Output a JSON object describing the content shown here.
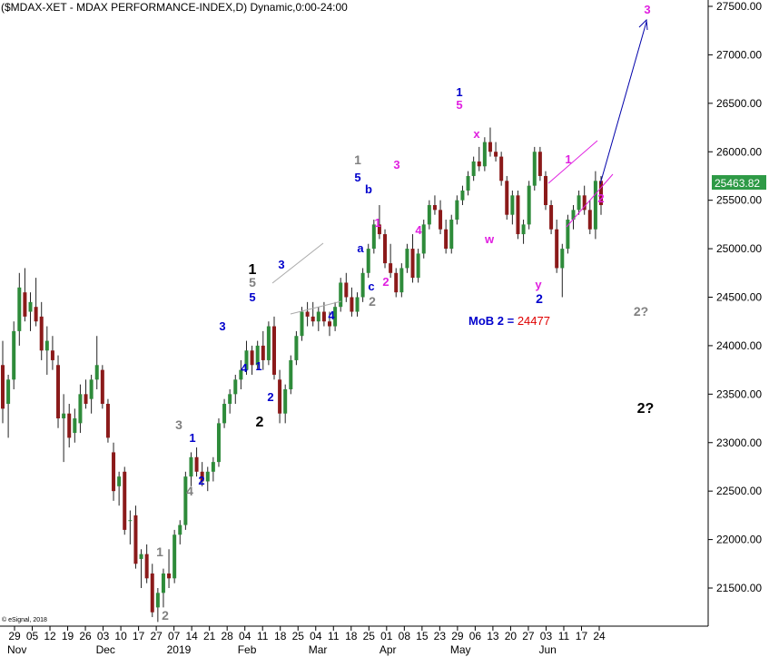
{
  "chart_data": {
    "type": "candlestick",
    "title": "($MDAX-XET - MDAX PERFORMANCE-INDEX,D) Dynamic,0:00-24:00",
    "last_price_label": "25463.82",
    "copyright": "© eSignal, 2018",
    "ylim": [
      21100,
      27700
    ],
    "y_ticks": [
      "21500.00",
      "22000.00",
      "22500.00",
      "23000.00",
      "23500.00",
      "24000.00",
      "24500.00",
      "25000.00",
      "25500.00",
      "26000.00",
      "26500.00",
      "27000.00",
      "27500.00"
    ],
    "x_day_labels": [
      "29",
      "05",
      "12",
      "19",
      "26",
      "03",
      "10",
      "17",
      "27",
      "07",
      "14",
      "21",
      "28",
      "04",
      "11",
      "18",
      "25",
      "04",
      "11",
      "18",
      "25",
      "01",
      "08",
      "15",
      "23",
      "29",
      "06",
      "13",
      "20",
      "27",
      "03",
      "11",
      "17",
      "24"
    ],
    "x_month_labels": [
      "Nov",
      "Dec",
      "2019",
      "Feb",
      "Mar",
      "Apr",
      "May",
      "Jun"
    ],
    "colors": {
      "up": "#2e8b3a",
      "down": "#8b1a1a",
      "blue": "#0000cc",
      "magenta": "#e020e0",
      "gray": "#808080",
      "black": "#000000",
      "red": "#e00000"
    },
    "candles": [
      [
        23800,
        24050,
        23200,
        23350
      ],
      [
        23400,
        23700,
        23050,
        23650
      ],
      [
        23650,
        24250,
        23550,
        24150
      ],
      [
        24150,
        24750,
        24000,
        24600
      ],
      [
        24550,
        24800,
        24250,
        24300
      ],
      [
        24350,
        24550,
        24150,
        24450
      ],
      [
        24400,
        24700,
        24200,
        24250
      ],
      [
        24300,
        24450,
        23850,
        23950
      ],
      [
        23950,
        24200,
        23700,
        24050
      ],
      [
        23950,
        24100,
        23750,
        23850
      ],
      [
        23800,
        23900,
        23150,
        23250
      ],
      [
        23250,
        23500,
        22800,
        23300
      ],
      [
        23300,
        23400,
        22950,
        23050
      ],
      [
        23100,
        23350,
        23000,
        23250
      ],
      [
        23200,
        23600,
        23100,
        23500
      ],
      [
        23500,
        23650,
        23350,
        23400
      ],
      [
        23450,
        23700,
        23300,
        23650
      ],
      [
        23650,
        24100,
        23550,
        23800
      ],
      [
        23750,
        23800,
        23350,
        23400
      ],
      [
        23400,
        23450,
        23000,
        23050
      ],
      [
        22900,
        23000,
        22400,
        22500
      ],
      [
        22550,
        22700,
        22350,
        22650
      ],
      [
        22700,
        22750,
        22050,
        22100
      ],
      [
        22200,
        22300,
        21950,
        22200
      ],
      [
        22250,
        22350,
        21700,
        21750
      ],
      [
        21800,
        21900,
        21500,
        21850
      ],
      [
        21850,
        21950,
        21550,
        21600
      ],
      [
        21650,
        21750,
        21200,
        21250
      ],
      [
        21300,
        21500,
        21150,
        21450
      ],
      [
        21450,
        21700,
        21300,
        21650
      ],
      [
        21650,
        21900,
        21500,
        21600
      ],
      [
        21600,
        22100,
        21550,
        22050
      ],
      [
        22050,
        22200,
        21950,
        22150
      ],
      [
        22150,
        22700,
        22100,
        22650
      ],
      [
        22650,
        22900,
        22550,
        22850
      ],
      [
        22850,
        22950,
        22650,
        22700
      ],
      [
        22700,
        22800,
        22550,
        22600
      ],
      [
        22600,
        22750,
        22500,
        22700
      ],
      [
        22700,
        22850,
        22600,
        22800
      ],
      [
        22800,
        23250,
        22750,
        23200
      ],
      [
        23200,
        23450,
        23150,
        23400
      ],
      [
        23400,
        23550,
        23300,
        23500
      ],
      [
        23500,
        23700,
        23400,
        23650
      ],
      [
        23650,
        23850,
        23550,
        23750
      ],
      [
        23750,
        24050,
        23700,
        23950
      ],
      [
        23950,
        24000,
        23700,
        23800
      ],
      [
        23800,
        24050,
        23750,
        24000
      ],
      [
        24000,
        24150,
        23750,
        23850
      ],
      [
        23850,
        24250,
        23800,
        24200
      ],
      [
        24200,
        24300,
        23650,
        23700
      ],
      [
        23650,
        23750,
        23200,
        23300
      ],
      [
        23300,
        23600,
        23200,
        23550
      ],
      [
        23550,
        23900,
        23500,
        23850
      ],
      [
        23850,
        24150,
        23800,
        24100
      ],
      [
        24100,
        24400,
        24050,
        24350
      ],
      [
        24350,
        24450,
        24200,
        24300
      ],
      [
        24300,
        24450,
        24200,
        24250
      ],
      [
        24250,
        24400,
        24150,
        24350
      ],
      [
        24350,
        24450,
        24200,
        24250
      ],
      [
        24250,
        24350,
        24100,
        24200
      ],
      [
        24200,
        24450,
        24150,
        24400
      ],
      [
        24400,
        24700,
        24350,
        24650
      ],
      [
        24650,
        24750,
        24450,
        24500
      ],
      [
        24500,
        24600,
        24300,
        24350
      ],
      [
        24350,
        24550,
        24300,
        24500
      ],
      [
        24500,
        24800,
        24450,
        24750
      ],
      [
        24750,
        25050,
        24700,
        25000
      ],
      [
        25000,
        25300,
        24950,
        25250
      ],
      [
        25250,
        25450,
        25100,
        25150
      ],
      [
        25150,
        25200,
        24800,
        24850
      ],
      [
        24850,
        25050,
        24700,
        24750
      ],
      [
        24750,
        24800,
        24500,
        24550
      ],
      [
        24550,
        24850,
        24500,
        24800
      ],
      [
        24800,
        25050,
        24750,
        25000
      ],
      [
        25000,
        25150,
        24650,
        24700
      ],
      [
        24700,
        25000,
        24650,
        24950
      ],
      [
        24950,
        25300,
        24900,
        25250
      ],
      [
        25250,
        25500,
        25200,
        25450
      ],
      [
        25450,
        25550,
        25350,
        25400
      ],
      [
        25400,
        25500,
        25150,
        25200
      ],
      [
        25200,
        25300,
        24950,
        25000
      ],
      [
        25000,
        25350,
        24950,
        25300
      ],
      [
        25300,
        25550,
        25250,
        25500
      ],
      [
        25500,
        25650,
        25450,
        25600
      ],
      [
        25600,
        25800,
        25550,
        25750
      ],
      [
        25750,
        25950,
        25700,
        25900
      ],
      [
        25900,
        26050,
        25800,
        25850
      ],
      [
        25850,
        26150,
        25800,
        26100
      ],
      [
        26100,
        26250,
        25950,
        26000
      ],
      [
        26000,
        26100,
        25900,
        25950
      ],
      [
        25950,
        26000,
        25650,
        25700
      ],
      [
        25700,
        25750,
        25300,
        25350
      ],
      [
        25350,
        25600,
        25250,
        25550
      ],
      [
        25550,
        25600,
        25100,
        25150
      ],
      [
        25150,
        25300,
        25050,
        25250
      ],
      [
        25250,
        25700,
        25200,
        25650
      ],
      [
        25650,
        26050,
        25600,
        26000
      ],
      [
        26000,
        26050,
        25700,
        25750
      ],
      [
        25750,
        25800,
        25400,
        25450
      ],
      [
        25450,
        25500,
        25150,
        25200
      ],
      [
        25200,
        25300,
        24750,
        24800
      ],
      [
        24800,
        25050,
        24500,
        25000
      ],
      [
        25000,
        25350,
        24950,
        25300
      ],
      [
        25300,
        25450,
        25200,
        25400
      ],
      [
        25400,
        25600,
        25350,
        25550
      ],
      [
        25550,
        25650,
        25350,
        25400
      ],
      [
        25400,
        25500,
        25150,
        25200
      ],
      [
        25200,
        25800,
        25100,
        25700
      ],
      [
        25700,
        25750,
        25350,
        25450
      ]
    ],
    "annotations": [
      {
        "text": "3",
        "x": 197,
        "y": 473,
        "color": "gray",
        "size": 14
      },
      {
        "text": "1",
        "x": 212,
        "y": 487,
        "color": "blue",
        "size": 13
      },
      {
        "text": "4",
        "x": 209,
        "y": 546,
        "color": "gray",
        "size": 14
      },
      {
        "text": "2",
        "x": 222,
        "y": 534,
        "color": "blue",
        "size": 13
      },
      {
        "text": "1",
        "x": 176,
        "y": 613,
        "color": "gray",
        "size": 14
      },
      {
        "text": "2",
        "x": 182,
        "y": 683,
        "color": "gray",
        "size": 14
      },
      {
        "text": "3",
        "x": 245,
        "y": 364,
        "color": "blue",
        "size": 13
      },
      {
        "text": "4",
        "x": 269,
        "y": 410,
        "color": "blue",
        "size": 13
      },
      {
        "text": "1",
        "x": 285,
        "y": 408,
        "color": "blue",
        "size": 13
      },
      {
        "text": "2",
        "x": 298,
        "y": 442,
        "color": "blue",
        "size": 13
      },
      {
        "text": "2",
        "x": 286,
        "y": 470,
        "color": "black",
        "size": 16
      },
      {
        "text": "1",
        "x": 278,
        "y": 302,
        "color": "black",
        "size": 16
      },
      {
        "text": "5",
        "x": 278,
        "y": 316,
        "color": "gray",
        "size": 14
      },
      {
        "text": "5",
        "x": 278,
        "y": 332,
        "color": "blue",
        "size": 13
      },
      {
        "text": "3",
        "x": 310,
        "y": 296,
        "color": "blue",
        "size": 13
      },
      {
        "text": "4",
        "x": 365,
        "y": 352,
        "color": "blue",
        "size": 13
      },
      {
        "text": "1",
        "x": 394,
        "y": 181,
        "color": "gray",
        "size": 14
      },
      {
        "text": "5",
        "x": 394,
        "y": 200,
        "color": "blue",
        "size": 13
      },
      {
        "text": "b",
        "x": 406,
        "y": 213,
        "color": "blue",
        "size": 13
      },
      {
        "text": "a",
        "x": 397,
        "y": 278,
        "color": "blue",
        "size": 13
      },
      {
        "text": "c",
        "x": 409,
        "y": 320,
        "color": "blue",
        "size": 13
      },
      {
        "text": "2",
        "x": 410,
        "y": 337,
        "color": "gray",
        "size": 14
      },
      {
        "text": "1",
        "x": 416,
        "y": 250,
        "color": "magenta",
        "size": 13
      },
      {
        "text": "2",
        "x": 425,
        "y": 315,
        "color": "magenta",
        "size": 13
      },
      {
        "text": "3",
        "x": 437,
        "y": 186,
        "color": "magenta",
        "size": 13
      },
      {
        "text": "4",
        "x": 461,
        "y": 258,
        "color": "magenta",
        "size": 13
      },
      {
        "text": "1",
        "x": 506,
        "y": 106,
        "color": "blue",
        "size": 13
      },
      {
        "text": "5",
        "x": 506,
        "y": 120,
        "color": "magenta",
        "size": 13
      },
      {
        "text": "x",
        "x": 525,
        "y": 152,
        "color": "magenta",
        "size": 13
      },
      {
        "text": "w",
        "x": 539,
        "y": 268,
        "color": "magenta",
        "size": 13
      },
      {
        "text": "y",
        "x": 593,
        "y": 318,
        "color": "magenta",
        "size": 13
      },
      {
        "text": "2",
        "x": 594,
        "y": 334,
        "color": "blue",
        "size": 14
      },
      {
        "text": "1",
        "x": 626,
        "y": 180,
        "color": "magenta",
        "size": 13
      },
      {
        "text": "2",
        "x": 662,
        "y": 223,
        "color": "magenta",
        "size": 13
      },
      {
        "text": "3",
        "x": 713,
        "y": 15,
        "color": "magenta",
        "size": 13
      },
      {
        "text": "2?",
        "x": 706,
        "y": 348,
        "color": "gray",
        "size": 14
      },
      {
        "text": "2?",
        "x": 711,
        "y": 455,
        "color": "black",
        "size": 16
      }
    ],
    "mob_label": "MoB 2 = ",
    "mob_value": "24477"
  }
}
